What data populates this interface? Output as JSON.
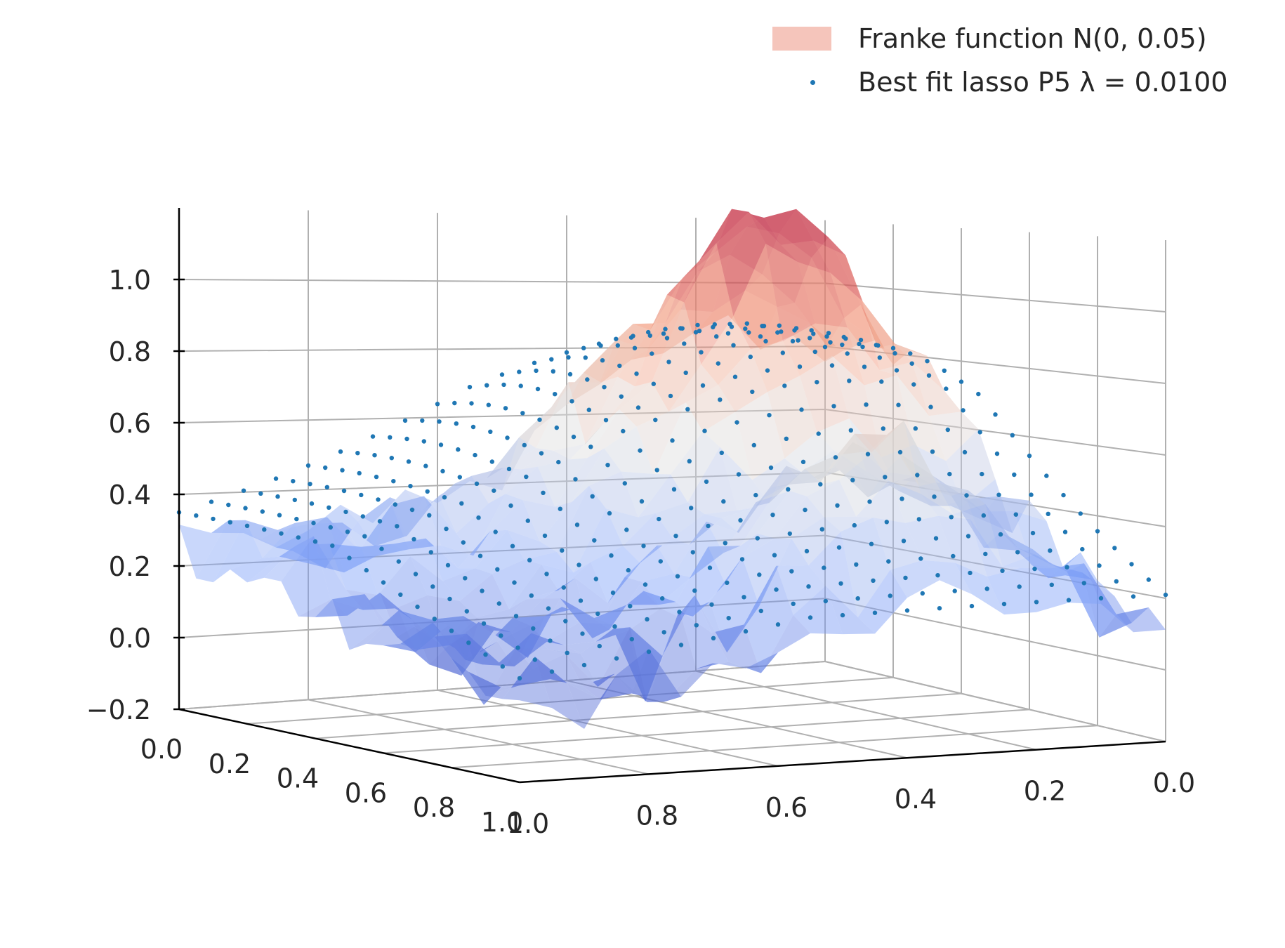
{
  "chart_data": {
    "type": "3d-surface-scatter",
    "title": "",
    "view": "elevation ~5°, azimuth ~45°",
    "series": [
      {
        "name": "Franke function N(0, 0.05)",
        "kind": "surface",
        "colormap": "coolwarm",
        "alpha": 0.5,
        "description": "Noisy Franke function surface with a peak of ~1.25 near (x=0.2, y=0.2)"
      },
      {
        "name": "Best fit lasso P5 λ = 0.0100",
        "kind": "scatter",
        "color": "#1f77b4",
        "description": "Smooth polynomial (degree 5) lasso fit evaluated on the grid"
      }
    ],
    "x_axis": {
      "label": "",
      "ticks": [
        "0.0",
        "0.2",
        "0.4",
        "0.6",
        "0.8",
        "1.0"
      ],
      "range": [
        0,
        1
      ]
    },
    "y_axis": {
      "label": "",
      "ticks": [
        "1.0",
        "0.8",
        "0.6",
        "0.4",
        "0.2",
        "0.0"
      ],
      "range": [
        0,
        1
      ]
    },
    "z_axis": {
      "label": "",
      "ticks": [
        "−0.2",
        "0.0",
        "0.2",
        "0.4",
        "0.6",
        "0.8",
        "1.0"
      ],
      "range": [
        -0.2,
        1.2
      ]
    },
    "grid": true,
    "legend_position": "top-right"
  },
  "legend": {
    "surface_label": "Franke function N(0, 0.05)",
    "scatter_label": "Best fit lasso P5 λ = 0.0100"
  },
  "colors": {
    "scatter": "#1f77b4",
    "surface_high": "#b40426",
    "surface_low": "#3b4cc0",
    "grid": "#b0b0b0",
    "axis": "#000000"
  }
}
